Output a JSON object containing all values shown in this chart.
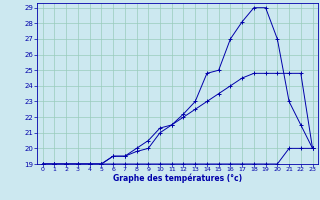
{
  "xlabel": "Graphe des températures (°c)",
  "bg_color": "#cce8f0",
  "grid_color": "#99ccbb",
  "line_color": "#0000aa",
  "xlim": [
    -0.5,
    23.5
  ],
  "ylim": [
    19,
    29.3
  ],
  "xticks": [
    0,
    1,
    2,
    3,
    4,
    5,
    6,
    7,
    8,
    9,
    10,
    11,
    12,
    13,
    14,
    15,
    16,
    17,
    18,
    19,
    20,
    21,
    22,
    23
  ],
  "yticks": [
    19,
    20,
    21,
    22,
    23,
    24,
    25,
    26,
    27,
    28,
    29
  ],
  "line1_x": [
    0,
    1,
    2,
    3,
    4,
    5,
    6,
    7,
    8,
    9,
    10,
    11,
    12,
    13,
    14,
    15,
    16,
    17,
    18,
    19,
    20,
    21,
    22,
    23
  ],
  "line1_y": [
    19,
    19,
    19,
    19,
    19,
    19,
    19,
    19,
    19,
    19,
    19,
    19,
    19,
    19,
    19,
    19,
    19,
    19,
    19,
    19,
    19,
    20,
    20,
    20
  ],
  "line2_x": [
    0,
    1,
    2,
    3,
    4,
    5,
    6,
    7,
    8,
    9,
    10,
    11,
    12,
    13,
    14,
    15,
    16,
    17,
    18,
    19,
    20,
    21,
    22,
    23
  ],
  "line2_y": [
    19,
    19,
    19,
    19,
    19,
    19,
    19.5,
    19.5,
    19.8,
    20,
    21,
    21.5,
    22,
    22.5,
    23,
    23.5,
    24,
    24.5,
    24.8,
    24.8,
    24.8,
    24.8,
    24.8,
    20
  ],
  "line3_x": [
    0,
    1,
    2,
    3,
    4,
    5,
    6,
    7,
    8,
    9,
    10,
    11,
    12,
    13,
    14,
    15,
    16,
    17,
    18,
    19,
    20,
    21,
    22,
    23
  ],
  "line3_y": [
    19,
    19,
    19,
    19,
    19,
    19,
    19.5,
    19.5,
    20,
    20.5,
    21.3,
    21.5,
    22.2,
    23,
    24.8,
    25,
    27,
    28.1,
    29,
    29,
    27,
    23,
    21.5,
    20
  ]
}
